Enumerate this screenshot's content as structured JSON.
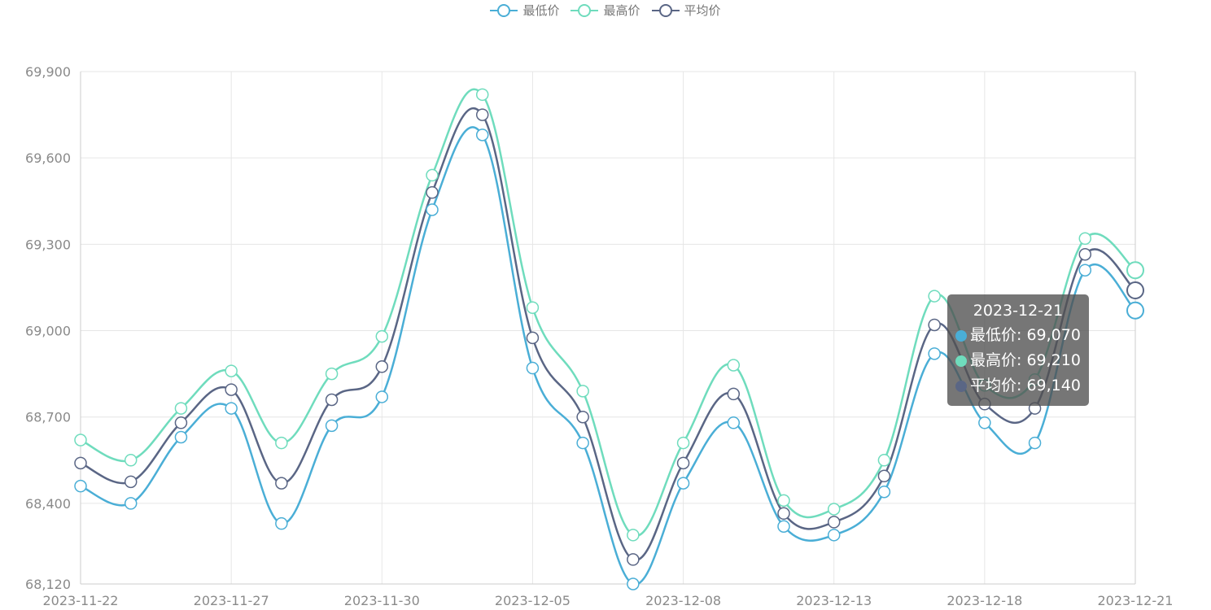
{
  "legend": [
    {
      "name": "最低价",
      "color": "#4aaed6"
    },
    {
      "name": "最高价",
      "color": "#6fdcbd"
    },
    {
      "name": "平均价",
      "color": "#5a6685"
    }
  ],
  "tooltip": {
    "title": "2023-12-21",
    "rows": [
      {
        "label": "最低价: 69,070",
        "color": "#4aaed6"
      },
      {
        "label": "最高价: 69,210",
        "color": "#6fdcbd"
      },
      {
        "label": "平均价: 69,140",
        "color": "#5a6685"
      }
    ]
  },
  "chart_data": {
    "type": "line",
    "x": [
      "2023-11-22",
      "2023-11-23",
      "2023-11-24",
      "2023-11-27",
      "2023-11-28",
      "2023-11-29",
      "2023-11-30",
      "2023-12-01",
      "2023-12-04",
      "2023-12-05",
      "2023-12-06",
      "2023-12-07",
      "2023-12-08",
      "2023-12-11",
      "2023-12-12",
      "2023-12-13",
      "2023-12-14",
      "2023-12-15",
      "2023-12-18",
      "2023-12-19",
      "2023-12-20",
      "2023-12-21"
    ],
    "x_tick_labels": [
      "2023-11-22",
      "2023-11-27",
      "2023-11-30",
      "2023-12-05",
      "2023-12-08",
      "2023-12-13",
      "2023-12-18",
      "2023-12-21"
    ],
    "y_tick_labels": [
      "68,120",
      "68,400",
      "68,700",
      "69,000",
      "69,300",
      "69,600",
      "69,900"
    ],
    "ylim": [
      68120,
      69900
    ],
    "grid": true,
    "legend_position": "top-center",
    "smooth": true,
    "series": [
      {
        "name": "最低价",
        "color": "#4aaed6",
        "values": [
          68460,
          68400,
          68630,
          68730,
          68330,
          68670,
          68770,
          69420,
          69680,
          68870,
          68610,
          68120,
          68470,
          68680,
          68320,
          68290,
          68440,
          68920,
          68680,
          68610,
          69210,
          69070
        ]
      },
      {
        "name": "最高价",
        "color": "#6fdcbd",
        "values": [
          68620,
          68550,
          68730,
          68860,
          68610,
          68850,
          68980,
          69540,
          69820,
          69080,
          68790,
          68290,
          68610,
          68880,
          68410,
          68380,
          68550,
          69120,
          68810,
          68830,
          69320,
          69210
        ]
      },
      {
        "name": "平均价",
        "color": "#5a6685",
        "values": [
          68540,
          68475,
          68680,
          68795,
          68470,
          68760,
          68875,
          69480,
          69750,
          68975,
          68700,
          68205,
          68540,
          68780,
          68365,
          68335,
          68495,
          69020,
          68745,
          68730,
          69265,
          69140
        ]
      }
    ]
  }
}
